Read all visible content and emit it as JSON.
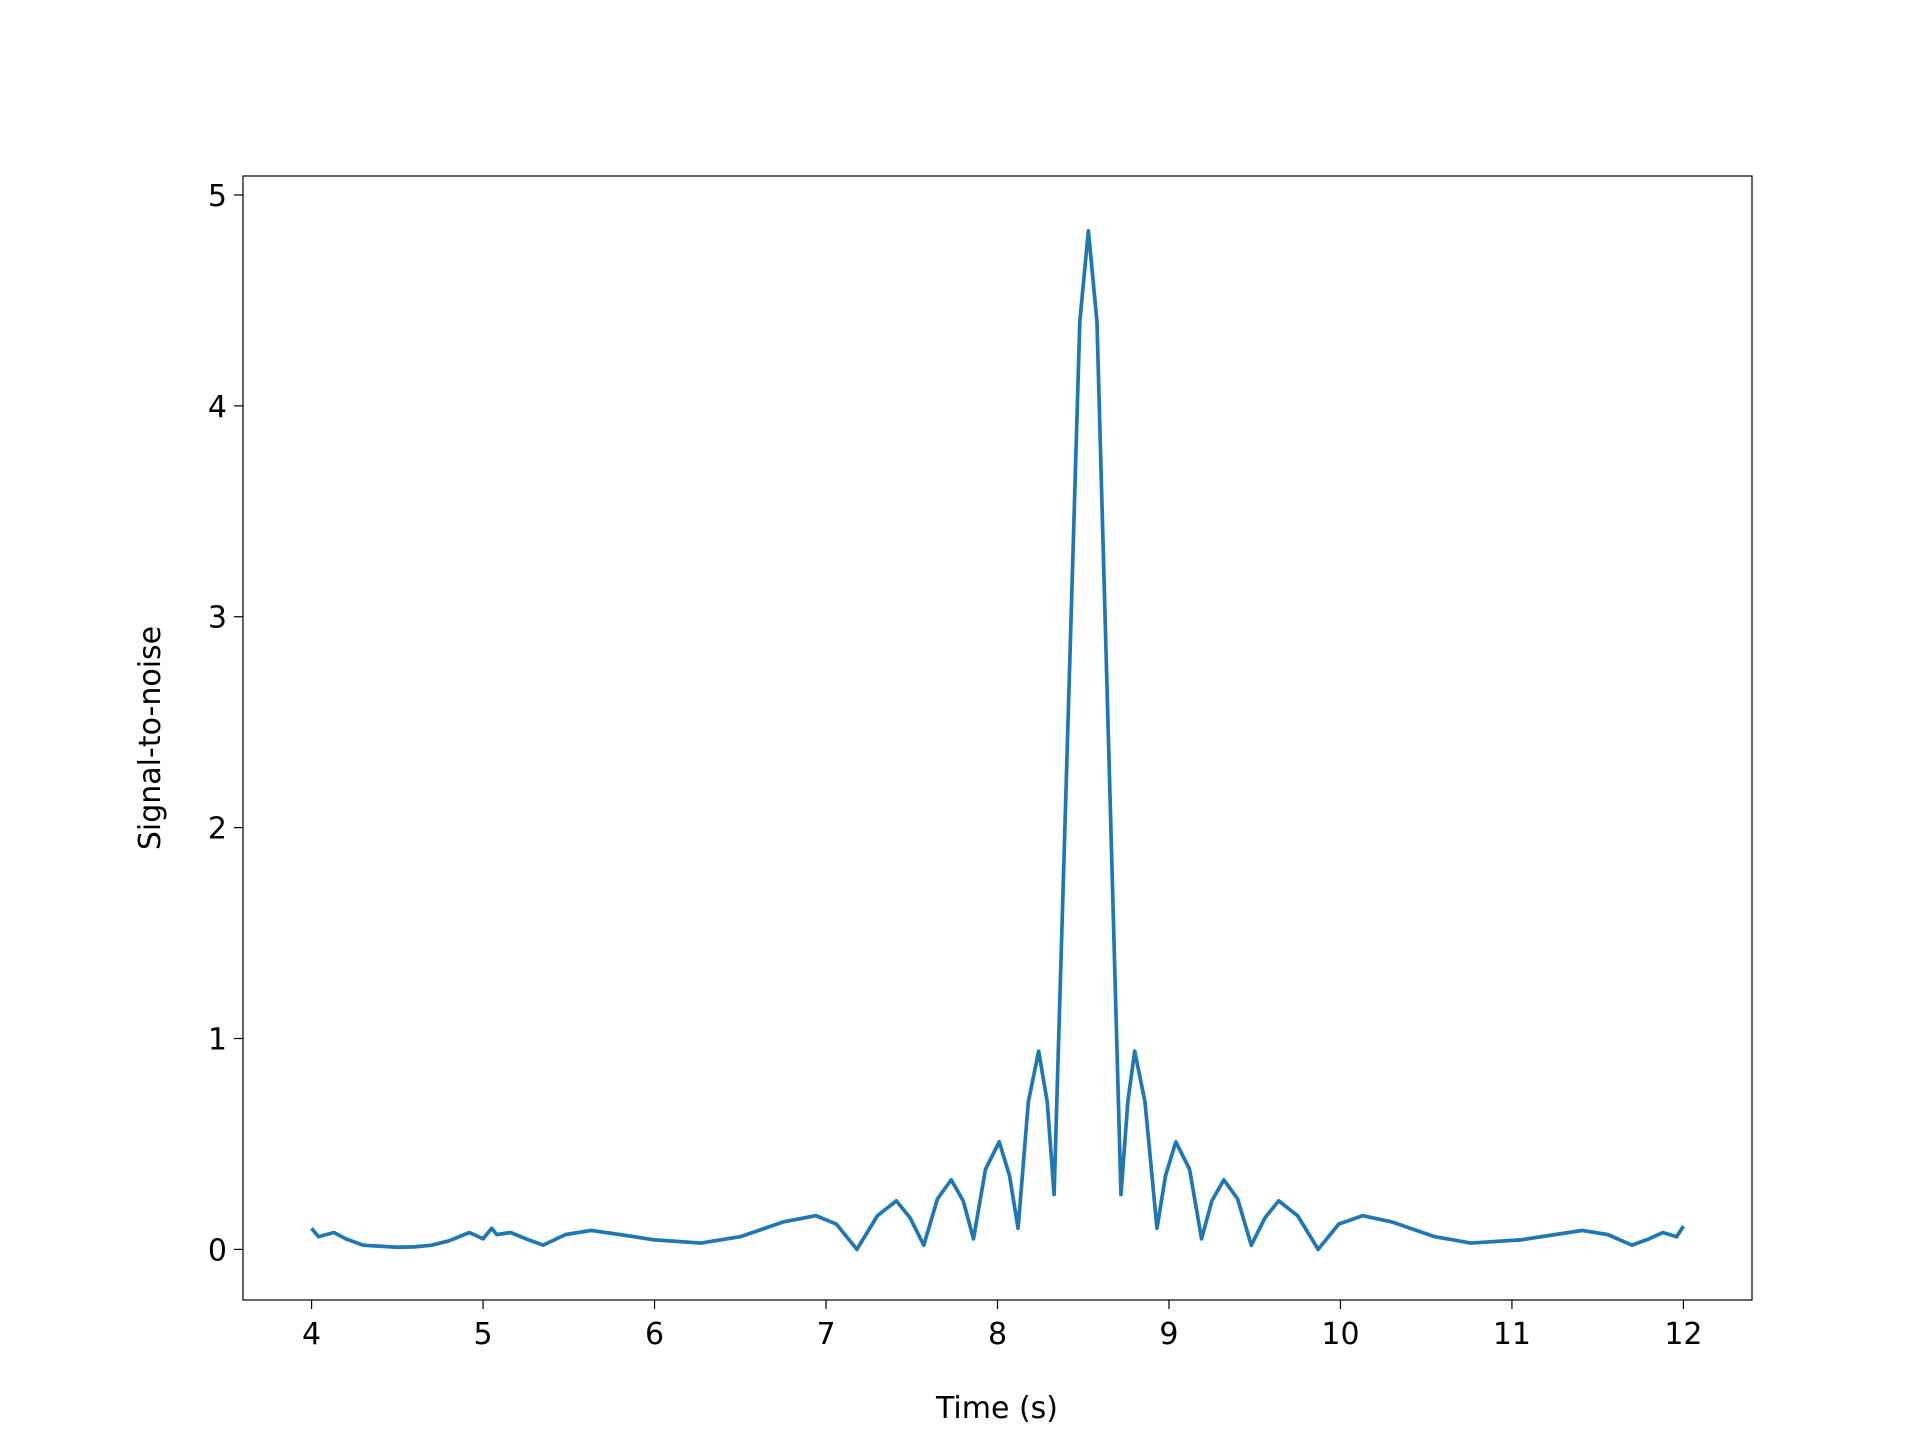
{
  "chart_data": {
    "type": "line",
    "xlabel": "Time (s)",
    "ylabel": "Signal-to-noise",
    "x": [
      4.0,
      4.04,
      4.13,
      4.2,
      4.3,
      4.4,
      4.5,
      4.6,
      4.7,
      4.8,
      4.92,
      5.0,
      5.05,
      5.08,
      5.16,
      5.25,
      5.35,
      5.48,
      5.63,
      5.8,
      6.0,
      6.27,
      6.5,
      6.75,
      6.94,
      7.06,
      7.18,
      7.3,
      7.41,
      7.49,
      7.57,
      7.65,
      7.73,
      7.8,
      7.86,
      7.93,
      8.01,
      8.07,
      8.12,
      8.18,
      8.24,
      8.29,
      8.33,
      8.48,
      8.53,
      8.58,
      8.72,
      8.76,
      8.8,
      8.86,
      8.93,
      8.98,
      9.04,
      9.12,
      9.19,
      9.25,
      9.32,
      9.4,
      9.48,
      9.56,
      9.64,
      9.75,
      9.87,
      9.99,
      10.13,
      10.3,
      10.55,
      10.76,
      11.05,
      11.25,
      11.41,
      11.56,
      11.7,
      11.8,
      11.88,
      11.96,
      12.0
    ],
    "series": [
      {
        "color": "#1f77b4",
        "values": [
          0.1,
          0.06,
          0.08,
          0.05,
          0.02,
          0.015,
          0.01,
          0.012,
          0.02,
          0.04,
          0.08,
          0.05,
          0.1,
          0.07,
          0.08,
          0.05,
          0.02,
          0.07,
          0.09,
          0.07,
          0.045,
          0.03,
          0.06,
          0.13,
          0.16,
          0.12,
          0.0,
          0.16,
          0.23,
          0.15,
          0.02,
          0.24,
          0.33,
          0.23,
          0.05,
          0.38,
          0.51,
          0.35,
          0.1,
          0.7,
          0.94,
          0.7,
          0.26,
          4.4,
          4.83,
          4.4,
          0.26,
          0.7,
          0.94,
          0.7,
          0.1,
          0.35,
          0.51,
          0.38,
          0.05,
          0.23,
          0.33,
          0.24,
          0.02,
          0.15,
          0.23,
          0.16,
          0.0,
          0.12,
          0.16,
          0.13,
          0.06,
          0.03,
          0.045,
          0.07,
          0.09,
          0.07,
          0.02,
          0.05,
          0.08,
          0.06,
          0.11
        ]
      }
    ],
    "xlim": [
      3.6,
      12.4
    ],
    "xticks": [
      4,
      5,
      6,
      7,
      8,
      9,
      10,
      11,
      12
    ],
    "ylim": [
      -0.24,
      5.09
    ],
    "yticks": [
      0,
      1,
      2,
      3,
      4,
      5
    ]
  }
}
